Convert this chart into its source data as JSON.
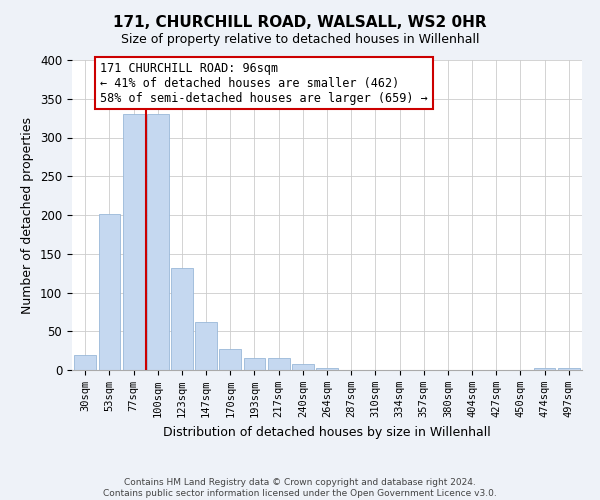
{
  "title": "171, CHURCHILL ROAD, WALSALL, WS2 0HR",
  "subtitle": "Size of property relative to detached houses in Willenhall",
  "xlabel": "Distribution of detached houses by size in Willenhall",
  "ylabel": "Number of detached properties",
  "bar_labels": [
    "30sqm",
    "53sqm",
    "77sqm",
    "100sqm",
    "123sqm",
    "147sqm",
    "170sqm",
    "193sqm",
    "217sqm",
    "240sqm",
    "264sqm",
    "287sqm",
    "310sqm",
    "334sqm",
    "357sqm",
    "380sqm",
    "404sqm",
    "427sqm",
    "450sqm",
    "474sqm",
    "497sqm"
  ],
  "bar_values": [
    19,
    201,
    330,
    330,
    132,
    62,
    27,
    16,
    15,
    8,
    2,
    0,
    0,
    0,
    0,
    0,
    0,
    0,
    0,
    2,
    3
  ],
  "bar_color": "#c5d8f0",
  "bar_edge_color": "#9ab8d8",
  "vline_x": 2.5,
  "vline_color": "#cc0000",
  "ylim": [
    0,
    400
  ],
  "yticks": [
    0,
    50,
    100,
    150,
    200,
    250,
    300,
    350,
    400
  ],
  "annotation_title": "171 CHURCHILL ROAD: 96sqm",
  "annotation_line1": "← 41% of detached houses are smaller (462)",
  "annotation_line2": "58% of semi-detached houses are larger (659) →",
  "footer_line1": "Contains HM Land Registry data © Crown copyright and database right 2024.",
  "footer_line2": "Contains public sector information licensed under the Open Government Licence v3.0.",
  "bg_color": "#eef2f8",
  "plot_bg_color": "#ffffff",
  "grid_color": "#cccccc"
}
